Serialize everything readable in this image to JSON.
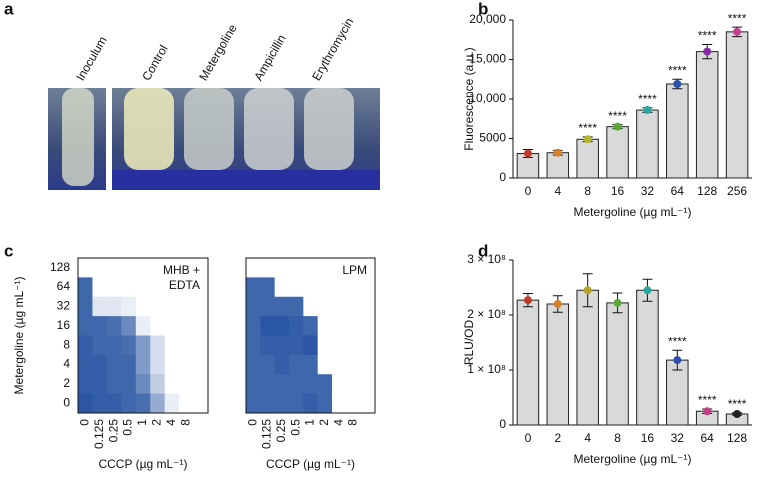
{
  "panel_a": {
    "label": "a",
    "photo_labels": [
      "Inoculum",
      "Control",
      "Metergoline",
      "Ampicillin",
      "Erythromycin"
    ]
  },
  "chart_data": [
    {
      "type": "bar",
      "panel": "b",
      "y_label": "Fluorescence (a.u.)",
      "x_label": "Metergoline (µg mL⁻¹)",
      "categories": [
        "0",
        "4",
        "8",
        "16",
        "32",
        "64",
        "128",
        "256"
      ],
      "values": [
        3100,
        3200,
        4900,
        6500,
        8600,
        11900,
        16000,
        18500
      ],
      "errors": [
        500,
        300,
        300,
        250,
        300,
        600,
        900,
        600
      ],
      "significance": [
        null,
        null,
        "****",
        "****",
        "****",
        "****",
        "****",
        "****"
      ],
      "color": "#d9d9d9",
      "point_colors": [
        "#c0392b",
        "#d4802a",
        "#b5b52a",
        "#5aa83a",
        "#2aa8a0",
        "#2a4fa8",
        "#8a2aa8",
        "#c0408a"
      ],
      "ylim": [
        0,
        20000
      ],
      "yticks": [
        0,
        5000,
        {
          "value": 10000,
          "label": "10,000"
        },
        {
          "value": 15000,
          "label": "15,000"
        },
        {
          "value": 20000,
          "label": "20,000"
        }
      ]
    },
    {
      "type": "heatmap",
      "panel": "c",
      "annotation": [
        "MHB +",
        "EDTA"
      ],
      "y_label": "Metergoline (µg mL⁻¹)",
      "x_label": "CCCP (µg mL⁻¹)",
      "x_categories": [
        "0",
        "0.125",
        "0.25",
        "0.5",
        "1",
        "2",
        "4",
        "8"
      ],
      "y_categories": [
        "128",
        "64",
        "32",
        "16",
        "8",
        "4",
        "2",
        "0"
      ],
      "values": [
        [
          0,
          0,
          0,
          0,
          0,
          0,
          0,
          0
        ],
        [
          0.9,
          0,
          0,
          0,
          0,
          0,
          0,
          0
        ],
        [
          0.9,
          0.15,
          0.15,
          0.1,
          0,
          0,
          0,
          0
        ],
        [
          0.9,
          0.9,
          0.85,
          0.7,
          0.1,
          0,
          0,
          0
        ],
        [
          0.95,
          0.9,
          0.9,
          0.85,
          0.6,
          0.2,
          0,
          0
        ],
        [
          0.95,
          0.95,
          0.9,
          0.9,
          0.6,
          0.2,
          0,
          0
        ],
        [
          0.95,
          0.95,
          0.9,
          0.9,
          0.7,
          0.3,
          0,
          0
        ],
        [
          1,
          0.95,
          0.95,
          0.9,
          0.85,
          0.5,
          0.1,
          0
        ]
      ],
      "color": "#2a56a3",
      "zlim": [
        0,
        1
      ]
    },
    {
      "type": "heatmap",
      "annotation": [
        "LPM"
      ],
      "x_label": "CCCP (µg mL⁻¹)",
      "x_categories": [
        "0",
        "0.125",
        "0.25",
        "0.5",
        "1",
        "2",
        "4",
        "8"
      ],
      "values": [
        [
          0,
          0,
          0,
          0,
          0,
          0,
          0,
          0
        ],
        [
          0.9,
          0.9,
          0,
          0,
          0,
          0,
          0,
          0
        ],
        [
          0.9,
          0.9,
          0.9,
          0.9,
          0,
          0,
          0,
          0
        ],
        [
          0.9,
          1,
          1,
          0.95,
          0.9,
          0,
          0,
          0
        ],
        [
          0.9,
          0.95,
          0.95,
          0.95,
          1,
          0,
          0,
          0
        ],
        [
          0.9,
          0.9,
          0.95,
          0.9,
          0.9,
          0,
          0,
          0
        ],
        [
          0.9,
          0.9,
          0.9,
          0.9,
          0.9,
          0.9,
          0,
          0
        ],
        [
          0.9,
          0.9,
          0.9,
          0.9,
          0.95,
          0.9,
          0,
          0
        ]
      ],
      "color": "#2a56a3",
      "zlim": [
        0,
        1
      ]
    },
    {
      "type": "bar",
      "panel": "d",
      "y_label": "RLU/OD",
      "x_label": "Metergoline (µg mL⁻¹)",
      "categories": [
        "0",
        "2",
        "4",
        "8",
        "16",
        "32",
        "64",
        "128"
      ],
      "values": [
        227000000,
        220000000,
        245000000,
        222000000,
        245000000,
        118000000,
        25000000,
        20000000
      ],
      "errors": [
        12000000,
        15000000,
        30000000,
        18000000,
        20000000,
        18000000,
        4000000,
        2000000
      ],
      "significance": [
        null,
        null,
        null,
        null,
        null,
        "****",
        "****",
        "****"
      ],
      "color": "#d9d9d9",
      "point_colors": [
        "#c0392b",
        "#d4802a",
        "#b5a52a",
        "#5aa83a",
        "#2aa8a0",
        "#2a4fa8",
        "#c0408a",
        "#222222"
      ],
      "ylim": [
        0,
        300000000
      ],
      "yticks": [
        0,
        {
          "value": 100000000,
          "label": "1 × 10⁸"
        },
        {
          "value": 200000000,
          "label": "2 × 10⁸"
        },
        {
          "value": 300000000,
          "label": "3 × 10⁸"
        }
      ]
    }
  ]
}
